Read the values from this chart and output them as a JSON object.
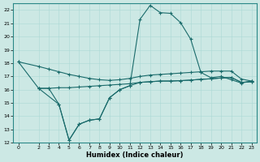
{
  "bg_color": "#cce8e4",
  "line_color": "#1a6b6b",
  "xlabel": "Humidex (Indice chaleur)",
  "xlim": [
    -0.5,
    23.5
  ],
  "ylim": [
    12,
    22.5
  ],
  "yticks": [
    12,
    13,
    14,
    15,
    16,
    17,
    18,
    19,
    20,
    21,
    22
  ],
  "xticks": [
    0,
    2,
    3,
    4,
    5,
    6,
    7,
    8,
    9,
    10,
    11,
    12,
    13,
    14,
    15,
    16,
    17,
    18,
    19,
    20,
    21,
    22,
    23
  ],
  "line1_x": [
    0,
    2,
    3,
    4,
    5,
    6,
    7,
    8,
    9,
    10,
    11,
    12,
    13,
    14,
    15,
    16,
    17,
    18,
    19,
    20,
    21,
    22,
    23
  ],
  "line1_y": [
    18.1,
    17.75,
    17.55,
    17.35,
    17.15,
    17.0,
    16.85,
    16.75,
    16.7,
    16.75,
    16.85,
    17.0,
    17.1,
    17.15,
    17.2,
    17.25,
    17.3,
    17.35,
    17.4,
    17.4,
    17.4,
    16.8,
    16.65
  ],
  "line2_x": [
    2,
    3,
    4,
    5,
    6,
    7,
    8,
    9,
    10,
    11,
    12,
    13,
    14,
    15,
    16,
    17,
    18,
    19,
    20,
    21,
    22,
    23
  ],
  "line2_y": [
    16.1,
    16.1,
    16.15,
    16.15,
    16.2,
    16.25,
    16.3,
    16.35,
    16.4,
    16.45,
    16.55,
    16.6,
    16.65,
    16.65,
    16.68,
    16.72,
    16.78,
    16.82,
    16.88,
    16.92,
    16.55,
    16.6
  ],
  "line3_x": [
    0,
    2,
    4,
    5,
    6,
    7,
    8,
    9,
    10,
    11,
    12,
    13,
    14,
    15,
    16,
    17,
    18,
    19,
    20,
    21,
    22,
    23
  ],
  "line3_y": [
    18.1,
    16.1,
    14.9,
    12.2,
    13.4,
    13.7,
    13.8,
    15.4,
    16.0,
    16.3,
    21.3,
    22.35,
    21.8,
    21.75,
    21.05,
    19.8,
    17.3,
    16.9,
    17.0,
    16.75,
    16.5,
    16.65
  ],
  "line4_x": [
    2,
    3,
    4,
    5,
    6,
    7,
    8,
    9,
    10,
    11,
    12,
    13,
    14,
    15,
    16,
    17,
    18,
    19,
    20,
    21,
    22,
    23
  ],
  "line4_y": [
    16.1,
    16.1,
    14.9,
    12.2,
    13.4,
    13.7,
    13.8,
    15.4,
    16.0,
    16.3,
    16.55,
    16.6,
    16.65,
    16.65,
    16.68,
    16.72,
    16.78,
    16.82,
    16.88,
    16.92,
    16.55,
    16.6
  ]
}
